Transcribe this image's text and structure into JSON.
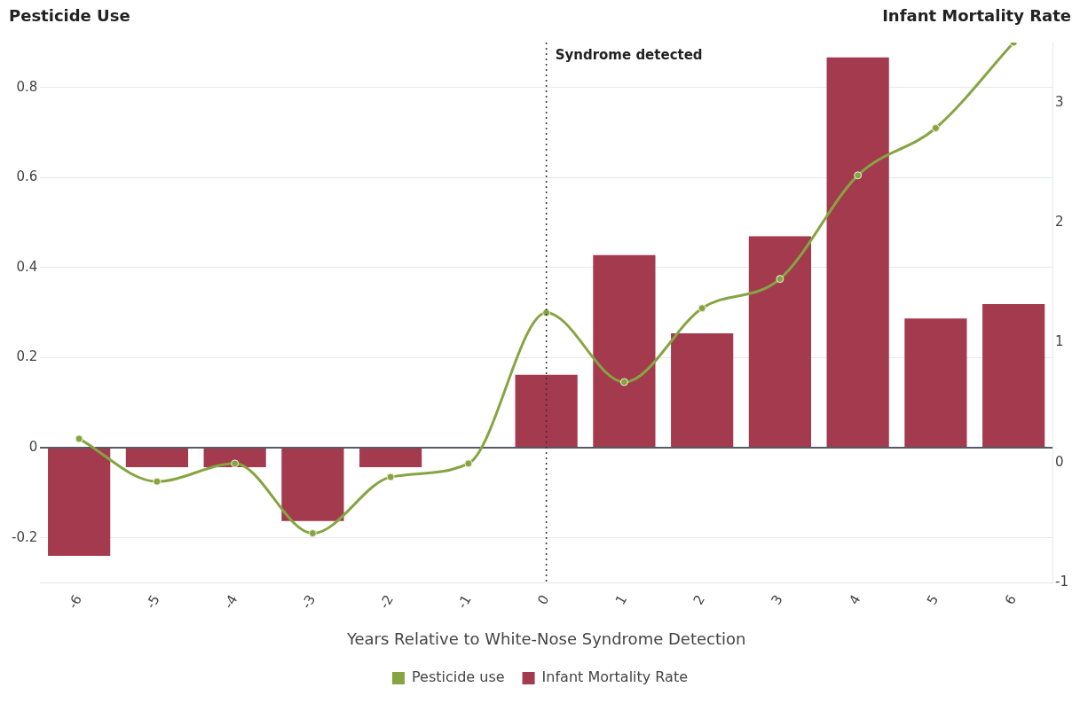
{
  "chart_data": {
    "type": "bar",
    "ylabel": "Pesticide Use",
    "y2label": "Infant Mortality Rate",
    "xlabel": "Years Relative to White-Nose Syndrome Detection",
    "categories": [
      "-6",
      "-5",
      "-4",
      "-3",
      "-2",
      "-1",
      "0",
      "1",
      "2",
      "3",
      "4",
      "5",
      "6"
    ],
    "series": [
      {
        "name": "Pesticide use",
        "type": "line",
        "color": "#86a542",
        "marker": "circle",
        "values": [
          0.02,
          -0.075,
          -0.035,
          -0.19,
          -0.065,
          -0.035,
          0.3,
          0.146,
          0.31,
          0.375,
          0.605,
          0.71,
          0.9
        ]
      },
      {
        "name": "Infant Mortality Rate",
        "color": "#a33a4e",
        "values": [
          -0.24,
          -0.043,
          -0.043,
          -0.163,
          -0.043,
          null,
          0.162,
          0.428,
          0.254,
          0.47,
          0.867,
          0.287,
          0.319
        ]
      }
    ],
    "ylim": [
      -0.3,
      0.9
    ],
    "yticks": [
      -0.2,
      0,
      0.2,
      0.4,
      0.6,
      0.8
    ],
    "y2lim": [
      -1,
      3.5
    ],
    "y2ticks": [
      -1,
      0,
      1,
      2,
      3
    ],
    "ref_lines": [
      {
        "axis": "x",
        "value": "0",
        "label": "Syndrome detected",
        "line_style": "dotted",
        "color": "#333333"
      }
    ],
    "grid": "y",
    "legend": "bottom"
  }
}
